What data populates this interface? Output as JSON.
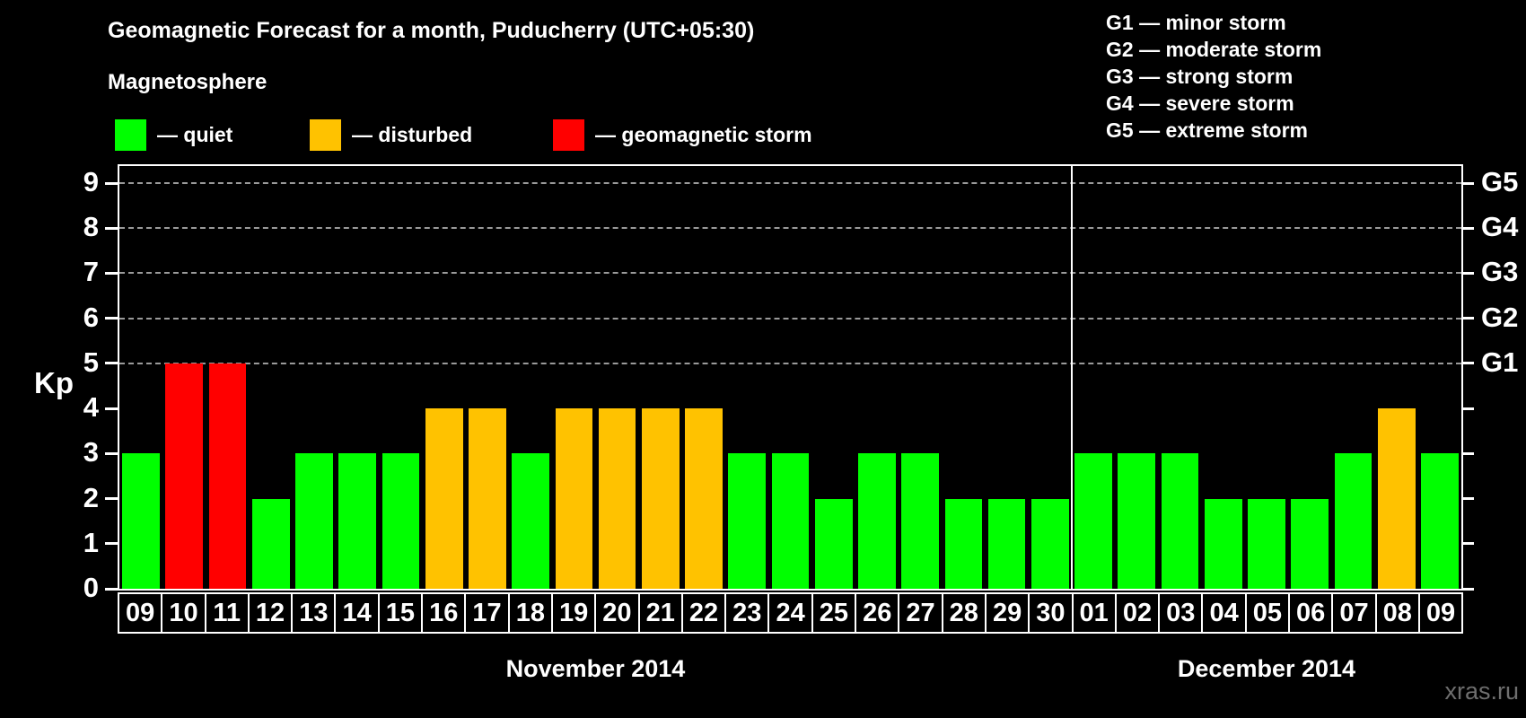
{
  "title": "Geomagnetic Forecast for a month, Puducherry (UTC+05:30)",
  "subtitle": "Magnetosphere",
  "legend": {
    "quiet": {
      "label": "— quiet",
      "color": "#00ff00"
    },
    "disturbed": {
      "label": "— disturbed",
      "color": "#ffc200"
    },
    "storm": {
      "label": "— geomagnetic storm",
      "color": "#ff0000"
    }
  },
  "g_scale_legend": [
    "G1 — minor storm",
    "G2 — moderate storm",
    "G3 — strong storm",
    "G4 — severe storm",
    "G5 — extreme storm"
  ],
  "watermark": "xras.ru",
  "chart_data": {
    "type": "bar",
    "ylabel": "Kp",
    "ylim": [
      0,
      9
    ],
    "yticks": [
      0,
      1,
      2,
      3,
      4,
      5,
      6,
      7,
      8,
      9
    ],
    "gridlines_at": [
      5,
      6,
      7,
      8,
      9
    ],
    "right_axis_labels": [
      {
        "kp": 5,
        "label": "G1"
      },
      {
        "kp": 6,
        "label": "G2"
      },
      {
        "kp": 7,
        "label": "G3"
      },
      {
        "kp": 8,
        "label": "G4"
      },
      {
        "kp": 9,
        "label": "G5"
      }
    ],
    "months": [
      {
        "label": "November 2014",
        "days": 22
      },
      {
        "label": "December 2014",
        "days": 9
      }
    ],
    "bars": [
      {
        "date": "09",
        "kp": 3,
        "status": "quiet"
      },
      {
        "date": "10",
        "kp": 5,
        "status": "storm"
      },
      {
        "date": "11",
        "kp": 5,
        "status": "storm"
      },
      {
        "date": "12",
        "kp": 2,
        "status": "quiet"
      },
      {
        "date": "13",
        "kp": 3,
        "status": "quiet"
      },
      {
        "date": "14",
        "kp": 3,
        "status": "quiet"
      },
      {
        "date": "15",
        "kp": 3,
        "status": "quiet"
      },
      {
        "date": "16",
        "kp": 4,
        "status": "disturbed"
      },
      {
        "date": "17",
        "kp": 4,
        "status": "disturbed"
      },
      {
        "date": "18",
        "kp": 3,
        "status": "quiet"
      },
      {
        "date": "19",
        "kp": 4,
        "status": "disturbed"
      },
      {
        "date": "20",
        "kp": 4,
        "status": "disturbed"
      },
      {
        "date": "21",
        "kp": 4,
        "status": "disturbed"
      },
      {
        "date": "22",
        "kp": 4,
        "status": "disturbed"
      },
      {
        "date": "23",
        "kp": 3,
        "status": "quiet"
      },
      {
        "date": "24",
        "kp": 3,
        "status": "quiet"
      },
      {
        "date": "25",
        "kp": 2,
        "status": "quiet"
      },
      {
        "date": "26",
        "kp": 3,
        "status": "quiet"
      },
      {
        "date": "27",
        "kp": 3,
        "status": "quiet"
      },
      {
        "date": "28",
        "kp": 2,
        "status": "quiet"
      },
      {
        "date": "29",
        "kp": 2,
        "status": "quiet"
      },
      {
        "date": "30",
        "kp": 2,
        "status": "quiet"
      },
      {
        "date": "01",
        "kp": 3,
        "status": "quiet"
      },
      {
        "date": "02",
        "kp": 3,
        "status": "quiet"
      },
      {
        "date": "03",
        "kp": 3,
        "status": "quiet"
      },
      {
        "date": "04",
        "kp": 2,
        "status": "quiet"
      },
      {
        "date": "05",
        "kp": 2,
        "status": "quiet"
      },
      {
        "date": "06",
        "kp": 2,
        "status": "quiet"
      },
      {
        "date": "07",
        "kp": 3,
        "status": "quiet"
      },
      {
        "date": "08",
        "kp": 4,
        "status": "disturbed"
      },
      {
        "date": "09",
        "kp": 3,
        "status": "quiet"
      }
    ]
  }
}
